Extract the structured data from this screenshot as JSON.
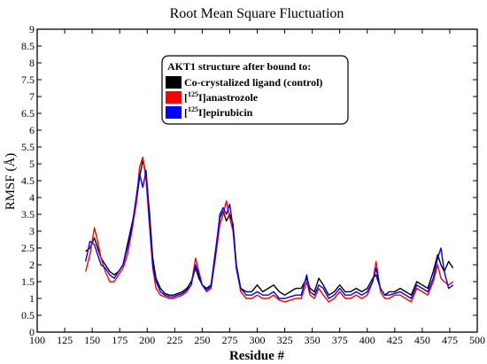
{
  "chart_data": {
    "type": "line",
    "title": "Root Mean Square Fluctuation",
    "xlabel": "Residue #",
    "ylabel": "RMSF (Å)",
    "xlim": [
      100,
      500
    ],
    "ylim": [
      0,
      9
    ],
    "x_ticks": [
      100,
      125,
      150,
      175,
      200,
      225,
      250,
      275,
      300,
      325,
      350,
      375,
      400,
      425,
      450,
      475,
      500
    ],
    "y_ticks": [
      0,
      0.5,
      1,
      1.5,
      2,
      2.5,
      3,
      3.5,
      4,
      4.5,
      5,
      5.5,
      6,
      6.5,
      7,
      7.5,
      8,
      8.5,
      9
    ],
    "grid": false,
    "legend": {
      "placement": "top-center",
      "title": "AKT1 structure after bound to:",
      "entries": [
        {
          "label": "Co-crystalized ligand (control)",
          "sup": "",
          "suffix": ""
        },
        {
          "label": "",
          "sup": "125",
          "prefix": "[",
          "suffix": "I]anastrozole"
        },
        {
          "label": "",
          "sup": "125",
          "prefix": "[",
          "suffix": "I]epirubicin"
        }
      ]
    },
    "series": [
      {
        "color": "#000000",
        "x": [
          144,
          148,
          152,
          155,
          158,
          162,
          166,
          170,
          174,
          178,
          182,
          186,
          190,
          193,
          196,
          199,
          202,
          205,
          208,
          212,
          216,
          220,
          224,
          228,
          232,
          236,
          240,
          244,
          247,
          250,
          254,
          258,
          262,
          266,
          269,
          272,
          275,
          278,
          281,
          285,
          290,
          295,
          300,
          305,
          310,
          315,
          320,
          325,
          330,
          335,
          340,
          345,
          348,
          352,
          356,
          360,
          365,
          370,
          375,
          380,
          385,
          390,
          395,
          400,
          405,
          408,
          412,
          416,
          420,
          425,
          430,
          435,
          440,
          445,
          450,
          455,
          460,
          464,
          467,
          470,
          474,
          478
        ],
        "y": [
          2.4,
          2.5,
          2.8,
          2.5,
          2.2,
          2.0,
          1.8,
          1.7,
          1.8,
          2.0,
          2.6,
          3.2,
          3.8,
          4.6,
          5.1,
          4.7,
          3.6,
          2.2,
          1.6,
          1.3,
          1.15,
          1.1,
          1.1,
          1.15,
          1.2,
          1.3,
          1.5,
          1.9,
          1.6,
          1.4,
          1.3,
          1.4,
          2.4,
          3.4,
          3.6,
          3.3,
          3.5,
          3.2,
          2.0,
          1.3,
          1.2,
          1.2,
          1.4,
          1.2,
          1.3,
          1.4,
          1.2,
          1.1,
          1.2,
          1.3,
          1.3,
          1.6,
          1.3,
          1.2,
          1.6,
          1.4,
          1.1,
          1.2,
          1.4,
          1.2,
          1.2,
          1.3,
          1.2,
          1.3,
          1.6,
          1.7,
          1.3,
          1.1,
          1.2,
          1.2,
          1.3,
          1.2,
          1.1,
          1.5,
          1.4,
          1.3,
          1.8,
          2.3,
          2.0,
          1.8,
          2.1,
          1.9
        ]
      },
      {
        "color": "#ff0000",
        "x": [
          144,
          148,
          152,
          155,
          158,
          162,
          166,
          170,
          174,
          178,
          182,
          186,
          190,
          193,
          196,
          199,
          202,
          205,
          208,
          212,
          216,
          220,
          224,
          228,
          232,
          236,
          240,
          244,
          247,
          250,
          254,
          258,
          262,
          266,
          269,
          272,
          275,
          278,
          281,
          285,
          290,
          295,
          300,
          305,
          310,
          315,
          320,
          325,
          330,
          335,
          340,
          345,
          348,
          352,
          356,
          360,
          365,
          370,
          375,
          380,
          385,
          390,
          395,
          400,
          405,
          408,
          412,
          416,
          420,
          425,
          430,
          435,
          440,
          445,
          450,
          455,
          460,
          464,
          467,
          470,
          474,
          478
        ],
        "y": [
          1.8,
          2.3,
          3.1,
          2.7,
          2.2,
          1.8,
          1.5,
          1.5,
          1.7,
          1.9,
          2.3,
          3.0,
          3.8,
          4.9,
          5.2,
          4.5,
          3.2,
          1.9,
          1.3,
          1.1,
          1.05,
          1.0,
          1.0,
          1.05,
          1.1,
          1.2,
          1.4,
          2.2,
          1.8,
          1.4,
          1.2,
          1.3,
          2.2,
          3.2,
          3.5,
          3.9,
          3.4,
          3.0,
          1.9,
          1.2,
          1.0,
          1.0,
          1.1,
          1.0,
          1.0,
          1.1,
          0.95,
          0.9,
          0.95,
          1.0,
          1.0,
          1.5,
          1.1,
          1.0,
          1.3,
          1.1,
          0.9,
          1.0,
          1.2,
          1.0,
          1.0,
          1.1,
          1.0,
          1.1,
          1.5,
          2.1,
          1.2,
          1.0,
          1.0,
          1.1,
          1.1,
          1.0,
          0.9,
          1.3,
          1.2,
          1.1,
          1.5,
          2.0,
          1.6,
          1.5,
          1.4,
          1.5
        ]
      },
      {
        "color": "#0000ff",
        "x": [
          144,
          148,
          152,
          155,
          158,
          162,
          166,
          170,
          174,
          178,
          182,
          186,
          190,
          193,
          196,
          199,
          202,
          205,
          208,
          212,
          216,
          220,
          224,
          228,
          232,
          236,
          240,
          244,
          247,
          250,
          254,
          258,
          262,
          266,
          269,
          272,
          275,
          278,
          281,
          285,
          290,
          295,
          300,
          305,
          310,
          315,
          320,
          325,
          330,
          335,
          340,
          345,
          348,
          352,
          356,
          360,
          365,
          370,
          375,
          380,
          385,
          390,
          395,
          400,
          405,
          408,
          412,
          416,
          420,
          425,
          430,
          435,
          440,
          445,
          450,
          455,
          460,
          464,
          467,
          470,
          474,
          478
        ],
        "y": [
          2.1,
          2.7,
          2.6,
          2.3,
          2.0,
          1.9,
          1.7,
          1.6,
          1.8,
          2.0,
          2.5,
          3.1,
          4.0,
          4.7,
          4.3,
          4.8,
          3.4,
          2.0,
          1.5,
          1.2,
          1.1,
          1.05,
          1.05,
          1.1,
          1.15,
          1.25,
          1.4,
          2.0,
          1.7,
          1.4,
          1.25,
          1.35,
          2.3,
          3.5,
          3.7,
          3.5,
          3.8,
          3.1,
          1.9,
          1.3,
          1.1,
          1.1,
          1.2,
          1.1,
          1.1,
          1.2,
          1.0,
          1.0,
          1.05,
          1.1,
          1.1,
          1.7,
          1.2,
          1.1,
          1.4,
          1.3,
          1.0,
          1.1,
          1.3,
          1.1,
          1.1,
          1.2,
          1.1,
          1.2,
          1.5,
          1.9,
          1.3,
          1.1,
          1.1,
          1.15,
          1.2,
          1.1,
          1.0,
          1.4,
          1.3,
          1.2,
          1.6,
          2.2,
          2.5,
          1.8,
          1.3,
          1.4
        ]
      }
    ]
  }
}
